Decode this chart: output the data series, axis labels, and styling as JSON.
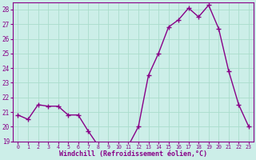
{
  "x": [
    0,
    1,
    2,
    3,
    4,
    5,
    6,
    7,
    8,
    9,
    10,
    11,
    12,
    13,
    14,
    15,
    16,
    17,
    18,
    19,
    20,
    21,
    22,
    23
  ],
  "y": [
    20.8,
    20.5,
    21.5,
    21.4,
    21.4,
    20.8,
    20.8,
    19.7,
    18.7,
    18.8,
    18.7,
    18.7,
    20.0,
    23.5,
    25.0,
    26.8,
    27.3,
    28.1,
    27.5,
    28.3,
    26.7,
    23.8,
    21.5,
    20.0
  ],
  "line_color": "#880088",
  "marker": "+",
  "marker_size": 4,
  "bg_color": "#cceee8",
  "grid_color": "#aaddcc",
  "xlabel": "Windchill (Refroidissement éolien,°C)",
  "xlabel_color": "#880088",
  "tick_color": "#880088",
  "ylim": [
    19,
    28.5
  ],
  "yticks": [
    19,
    20,
    21,
    22,
    23,
    24,
    25,
    26,
    27,
    28
  ],
  "xlim": [
    -0.5,
    23.5
  ],
  "linewidth": 1.0,
  "marker_linewidth": 1.0
}
